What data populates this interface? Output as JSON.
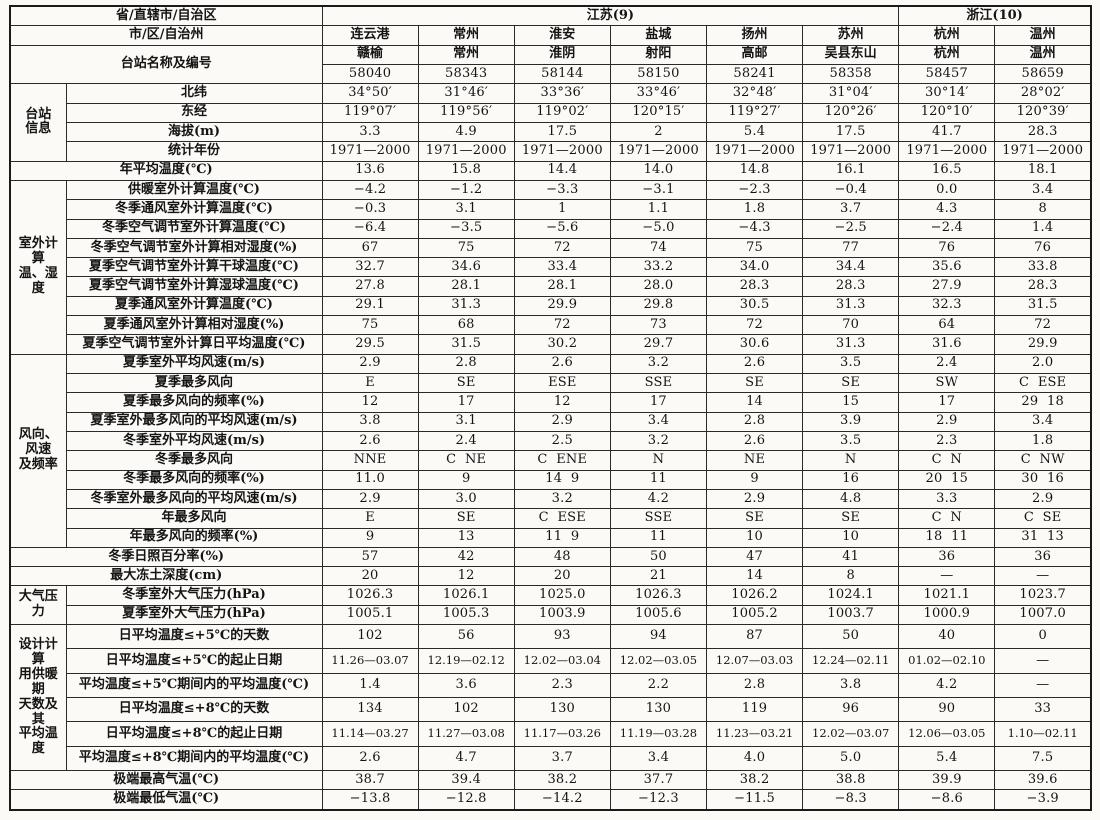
{
  "page": {
    "background": "#fbfaf6",
    "ink": "#141414",
    "border": "#1a1a1a"
  },
  "table": {
    "header": {
      "province_label": "省/直辖市/自治区",
      "provinces": [
        {
          "name": "江苏(9)",
          "span": 6
        },
        {
          "name": "浙江(10)",
          "span": 2
        }
      ],
      "city_label": "市/区/自治州",
      "cities": [
        "连云港",
        "常州",
        "淮安",
        "盐城",
        "扬州",
        "苏州",
        "杭州",
        "温州"
      ],
      "station_label": "台站名称及编号",
      "station_names": [
        "赣榆",
        "常州",
        "淮阴",
        "射阳",
        "高邮",
        "吴县东山",
        "杭州",
        "温州"
      ],
      "station_codes": [
        "58040",
        "58343",
        "58144",
        "58150",
        "58241",
        "58358",
        "58457",
        "58659"
      ]
    },
    "rows": [
      {
        "group": {
          "label": "台站\n信息",
          "span": 4
        },
        "label": "北纬",
        "values": [
          "34°50′",
          "31°46′",
          "33°36′",
          "33°46′",
          "32°48′",
          "31°04′",
          "30°14′",
          "28°02′"
        ]
      },
      {
        "label": "东经",
        "values": [
          "119°07′",
          "119°56′",
          "119°02′",
          "120°15′",
          "119°27′",
          "120°26′",
          "120°10′",
          "120°39′"
        ]
      },
      {
        "label": "海拔(m)",
        "values": [
          "3.3",
          "4.9",
          "17.5",
          "2",
          "5.4",
          "17.5",
          "41.7",
          "28.3"
        ]
      },
      {
        "label": "统计年份",
        "values": [
          "1971—2000",
          "1971—2000",
          "1971—2000",
          "1971—2000",
          "1971—2000",
          "1971—2000",
          "1971—2000",
          "1971—2000"
        ]
      },
      {
        "full": true,
        "label": "年平均温度(℃)",
        "values": [
          "13.6",
          "15.8",
          "14.4",
          "14.0",
          "14.8",
          "16.1",
          "16.5",
          "18.1"
        ]
      },
      {
        "group": {
          "label": "室外计算\n温、湿度",
          "span": 9
        },
        "label": "供暖室外计算温度(℃)",
        "values": [
          "−4.2",
          "−1.2",
          "−3.3",
          "−3.1",
          "−2.3",
          "−0.4",
          "0.0",
          "3.4"
        ]
      },
      {
        "label": "冬季通风室外计算温度(℃)",
        "values": [
          "−0.3",
          "3.1",
          "1",
          "1.1",
          "1.8",
          "3.7",
          "4.3",
          "8"
        ]
      },
      {
        "label": "冬季空气调节室外计算温度(℃)",
        "values": [
          "−6.4",
          "−3.5",
          "−5.6",
          "−5.0",
          "−4.3",
          "−2.5",
          "−2.4",
          "1.4"
        ]
      },
      {
        "label": "冬季空气调节室外计算相对湿度(%)",
        "values": [
          "67",
          "75",
          "72",
          "74",
          "75",
          "77",
          "76",
          "76"
        ]
      },
      {
        "label": "夏季空气调节室外计算干球温度(℃)",
        "values": [
          "32.7",
          "34.6",
          "33.4",
          "33.2",
          "34.0",
          "34.4",
          "35.6",
          "33.8"
        ]
      },
      {
        "label": "夏季空气调节室外计算湿球温度(℃)",
        "values": [
          "27.8",
          "28.1",
          "28.1",
          "28.0",
          "28.3",
          "28.3",
          "27.9",
          "28.3"
        ]
      },
      {
        "label": "夏季通风室外计算温度(℃)",
        "values": [
          "29.1",
          "31.3",
          "29.9",
          "29.8",
          "30.5",
          "31.3",
          "32.3",
          "31.5"
        ]
      },
      {
        "label": "夏季通风室外计算相对湿度(%)",
        "values": [
          "75",
          "68",
          "72",
          "73",
          "72",
          "70",
          "64",
          "72"
        ]
      },
      {
        "label": "夏季空气调节室外计算日平均温度(℃)",
        "values": [
          "29.5",
          "31.5",
          "30.2",
          "29.7",
          "30.6",
          "31.3",
          "31.6",
          "29.9"
        ]
      },
      {
        "group": {
          "label": "风向、\n风速\n及频率",
          "span": 10
        },
        "label": "夏季室外平均风速(m/s)",
        "values": [
          "2.9",
          "2.8",
          "2.6",
          "3.2",
          "2.6",
          "3.5",
          "2.4",
          "2.0"
        ]
      },
      {
        "label": "夏季最多风向",
        "values": [
          "E",
          "SE",
          "ESE",
          "SSE",
          "SE",
          "SE",
          "SW",
          "C  ESE"
        ]
      },
      {
        "label": "夏季最多风向的频率(%)",
        "values": [
          "12",
          "17",
          "12",
          "17",
          "14",
          "15",
          "17",
          "29  18"
        ]
      },
      {
        "label": "夏季室外最多风向的平均风速(m/s)",
        "values": [
          "3.8",
          "3.1",
          "2.9",
          "3.4",
          "2.8",
          "3.9",
          "2.9",
          "3.4"
        ]
      },
      {
        "label": "冬季室外平均风速(m/s)",
        "values": [
          "2.6",
          "2.4",
          "2.5",
          "3.2",
          "2.6",
          "3.5",
          "2.3",
          "1.8"
        ]
      },
      {
        "label": "冬季最多风向",
        "values": [
          "NNE",
          "C  NE",
          "C  ENE",
          "N",
          "NE",
          "N",
          "C  N",
          "C  NW"
        ]
      },
      {
        "label": "冬季最多风向的频率(%)",
        "values": [
          "11.0",
          "9",
          "14  9",
          "11",
          "9",
          "16",
          "20  15",
          "30  16"
        ]
      },
      {
        "label": "冬季室外最多风向的平均风速(m/s)",
        "values": [
          "2.9",
          "3.0",
          "3.2",
          "4.2",
          "2.9",
          "4.8",
          "3.3",
          "2.9"
        ]
      },
      {
        "label": "年最多风向",
        "values": [
          "E",
          "SE",
          "C  ESE",
          "SSE",
          "SE",
          "SE",
          "C  N",
          "C  SE"
        ]
      },
      {
        "label": "年最多风向的频率(%)",
        "values": [
          "9",
          "13",
          "11  9",
          "11",
          "10",
          "10",
          "18  11",
          "31  13"
        ]
      },
      {
        "full": true,
        "label": "冬季日照百分率(%)",
        "values": [
          "57",
          "42",
          "48",
          "50",
          "47",
          "41",
          "36",
          "36"
        ]
      },
      {
        "full": true,
        "label": "最大冻土深度(cm)",
        "values": [
          "20",
          "12",
          "20",
          "21",
          "14",
          "8",
          "—",
          "—"
        ]
      },
      {
        "group": {
          "label": "大气压力",
          "span": 2
        },
        "label": "冬季室外大气压力(hPa)",
        "values": [
          "1026.3",
          "1026.1",
          "1025.0",
          "1026.3",
          "1026.2",
          "1024.1",
          "1021.1",
          "1023.7"
        ]
      },
      {
        "label": "夏季室外大气压力(hPa)",
        "values": [
          "1005.1",
          "1005.3",
          "1003.9",
          "1005.6",
          "1005.2",
          "1003.7",
          "1000.9",
          "1007.0"
        ]
      },
      {
        "group": {
          "label": "设计计算\n用供暖期\n天数及其\n平均温度",
          "span": 6
        },
        "label": "日平均温度≤+5℃的天数",
        "values": [
          "102",
          "56",
          "93",
          "94",
          "87",
          "50",
          "40",
          "0"
        ]
      },
      {
        "label": "日平均温度≤+5℃的起止日期",
        "values": [
          "11.26—03.07",
          "12.19—02.12",
          "12.02—03.04",
          "12.02—03.05",
          "12.07—03.03",
          "12.24—02.11",
          "01.02—02.10",
          "—"
        ]
      },
      {
        "label": "平均温度≤+5℃期间内的平均温度(℃)",
        "values": [
          "1.4",
          "3.6",
          "2.3",
          "2.2",
          "2.8",
          "3.8",
          "4.2",
          "—"
        ]
      },
      {
        "label": "日平均温度≤+8℃的天数",
        "values": [
          "134",
          "102",
          "130",
          "130",
          "119",
          "96",
          "90",
          "33"
        ]
      },
      {
        "label": "日平均温度≤+8℃的起止日期",
        "values": [
          "11.14—03.27",
          "11.27—03.08",
          "11.17—03.26",
          "11.19—03.28",
          "11.23—03.21",
          "12.02—03.07",
          "12.06—03.05",
          "1.10—02.11"
        ]
      },
      {
        "label": "平均温度≤+8℃期间内的平均温度(℃)",
        "values": [
          "2.6",
          "4.7",
          "3.7",
          "3.4",
          "4.0",
          "5.0",
          "5.4",
          "7.5"
        ]
      },
      {
        "full": true,
        "label": "极端最高气温(℃)",
        "values": [
          "38.7",
          "39.4",
          "38.2",
          "37.7",
          "38.2",
          "38.8",
          "39.9",
          "39.6"
        ]
      },
      {
        "full": true,
        "label": "极端最低气温(℃)",
        "values": [
          "−13.8",
          "−12.8",
          "−14.2",
          "−12.3",
          "−11.5",
          "−8.3",
          "−8.6",
          "−3.9"
        ]
      }
    ]
  }
}
